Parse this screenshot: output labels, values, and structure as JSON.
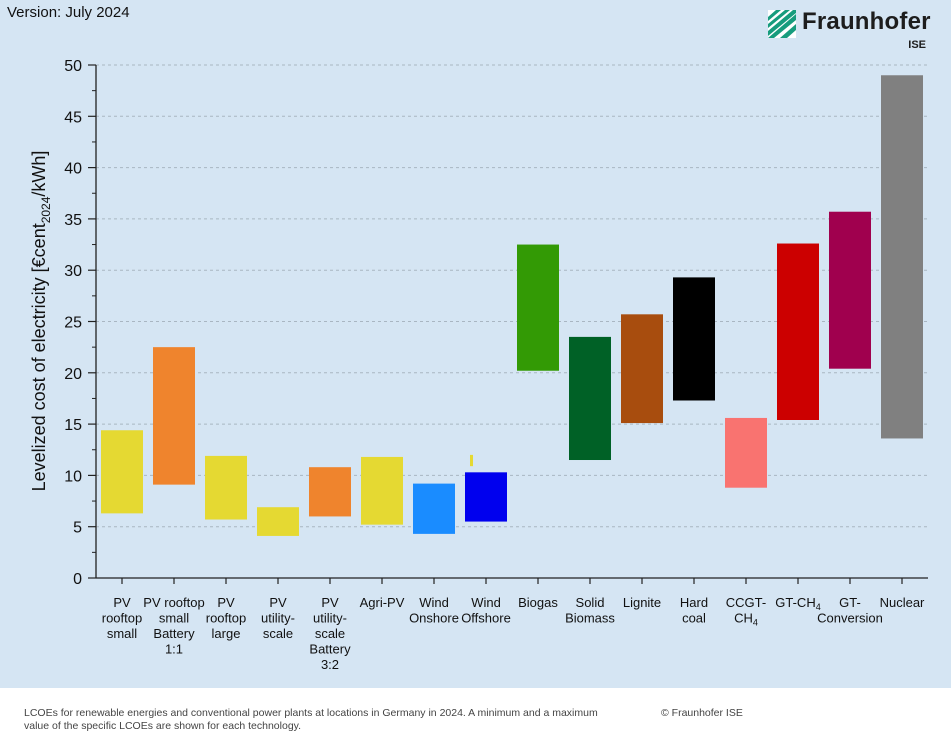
{
  "header": {
    "version": "Version: July 2024"
  },
  "logo": {
    "name": "Fraunhofer",
    "sub": "ISE",
    "color": "#179c7d"
  },
  "chart_data": {
    "type": "bar",
    "subtype": "floating-range",
    "title": "",
    "ylabel": "Levelized cost of electricity [€cent",
    "ylabel_sub": "2024",
    "ylabel_tail": "/kWh]",
    "ylim": [
      0,
      50
    ],
    "yticks": [
      0,
      5,
      10,
      15,
      20,
      25,
      30,
      35,
      40,
      45,
      50
    ],
    "grid": "horizontal-dashed",
    "categories": [
      {
        "lines": [
          "PV",
          "rooftop",
          "small"
        ],
        "min": 6.3,
        "max": 14.4,
        "color": "#e5d932"
      },
      {
        "lines": [
          "PV rooftop",
          "small",
          "Battery",
          "1:1"
        ],
        "min": 9.1,
        "max": 22.5,
        "color": "#ef842d"
      },
      {
        "lines": [
          "PV",
          "rooftop",
          "large"
        ],
        "min": 5.7,
        "max": 11.9,
        "color": "#e5d932"
      },
      {
        "lines": [
          "PV",
          "utility-",
          "scale"
        ],
        "min": 4.1,
        "max": 6.9,
        "color": "#e5d932"
      },
      {
        "lines": [
          "PV",
          "utility-",
          "scale",
          "Battery",
          "3:2"
        ],
        "min": 6.0,
        "max": 10.8,
        "color": "#ef842d"
      },
      {
        "lines": [
          "Agri-PV"
        ],
        "min": 5.2,
        "max": 11.8,
        "color": "#e5d932"
      },
      {
        "lines": [
          "Wind",
          "Onshore"
        ],
        "min": 4.3,
        "max": 9.2,
        "color": "#1a8cff"
      },
      {
        "lines": [
          "Wind",
          "Offshore"
        ],
        "min": 5.5,
        "max": 10.3,
        "color": "#0000ee"
      },
      {
        "lines": [
          "Biogas"
        ],
        "min": 20.2,
        "max": 32.5,
        "color": "#339a05"
      },
      {
        "lines": [
          "Solid",
          "Biomass"
        ],
        "min": 11.5,
        "max": 23.5,
        "color": "#006126"
      },
      {
        "lines": [
          "Lignite"
        ],
        "min": 15.1,
        "max": 25.7,
        "color": "#a84d0e"
      },
      {
        "lines": [
          "Hard",
          "coal"
        ],
        "min": 17.3,
        "max": 29.3,
        "color": "#000000"
      },
      {
        "lines": [
          "CCGT-",
          "CH4"
        ],
        "min": 8.8,
        "max": 15.6,
        "color": "#f97370"
      },
      {
        "lines": [
          "GT-CH4"
        ],
        "min": 15.4,
        "max": 32.6,
        "color": "#cc0000"
      },
      {
        "lines": [
          "GT-",
          "Conversion"
        ],
        "min": 20.4,
        "max": 35.7,
        "color": "#a0004e"
      },
      {
        "lines": [
          "Nuclear"
        ],
        "min": 13.6,
        "max": 49.0,
        "color": "#808080"
      }
    ]
  },
  "footer": {
    "caption": "LCOEs for renewable energies and conventional power plants at locations in Germany in 2024. A minimum and a maximum value of the specific LCOEs are shown for each technology.",
    "copyright": "© Fraunhofer ISE"
  }
}
